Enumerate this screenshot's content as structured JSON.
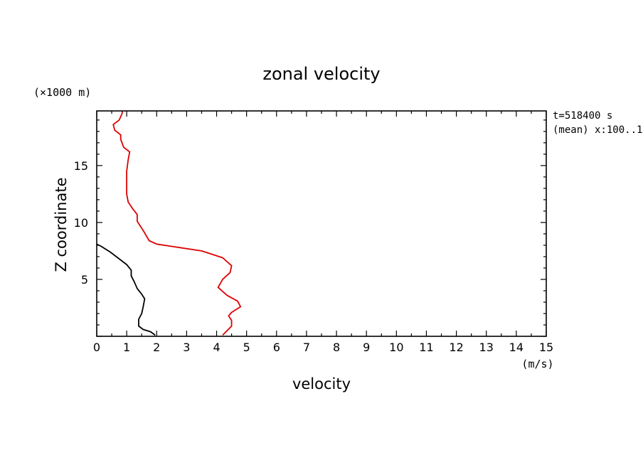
{
  "chart_data": {
    "type": "line",
    "title": "zonal velocity",
    "xlabel": "velocity",
    "xunit": "(m/s)",
    "ylabel": "Z coordinate",
    "yunit": "(×1000 m)",
    "annotations": [
      "t=518400 s",
      "(mean) x:100..1"
    ],
    "xlim": [
      0,
      15
    ],
    "ylim": [
      0,
      19.8
    ],
    "xticks": [
      "0",
      "1",
      "2",
      "3",
      "4",
      "5",
      "6",
      "7",
      "8",
      "9",
      "10",
      "11",
      "12",
      "13",
      "14",
      "15"
    ],
    "yticks": [
      "5",
      "10",
      "15"
    ],
    "series": [
      {
        "color": "#dd0000",
        "points": [
          [
            4.2,
            0.1
          ],
          [
            4.35,
            0.5
          ],
          [
            4.5,
            0.9
          ],
          [
            4.5,
            1.4
          ],
          [
            4.4,
            1.8
          ],
          [
            4.5,
            2.1
          ],
          [
            4.8,
            2.6
          ],
          [
            4.7,
            3.1
          ],
          [
            4.35,
            3.6
          ],
          [
            4.05,
            4.3
          ],
          [
            4.2,
            5.0
          ],
          [
            4.45,
            5.6
          ],
          [
            4.5,
            6.2
          ],
          [
            4.2,
            6.9
          ],
          [
            3.5,
            7.5
          ],
          [
            2.5,
            7.9
          ],
          [
            2.0,
            8.1
          ],
          [
            1.75,
            8.4
          ],
          [
            1.55,
            9.3
          ],
          [
            1.35,
            10.1
          ],
          [
            1.35,
            10.7
          ],
          [
            1.2,
            11.2
          ],
          [
            1.05,
            11.8
          ],
          [
            1.0,
            12.5
          ],
          [
            1.0,
            13.5
          ],
          [
            1.0,
            14.5
          ],
          [
            1.05,
            15.5
          ],
          [
            1.1,
            16.2
          ],
          [
            0.9,
            16.6
          ],
          [
            0.8,
            17.3
          ],
          [
            0.8,
            17.7
          ],
          [
            0.6,
            18.1
          ],
          [
            0.55,
            18.6
          ],
          [
            0.75,
            19.0
          ],
          [
            0.85,
            19.6
          ],
          [
            0.85,
            19.8
          ]
        ]
      },
      {
        "color": "#000000",
        "points": [
          [
            1.95,
            0.1
          ],
          [
            1.8,
            0.4
          ],
          [
            1.55,
            0.6
          ],
          [
            1.4,
            0.9
          ],
          [
            1.4,
            1.5
          ],
          [
            1.5,
            2.0
          ],
          [
            1.55,
            2.6
          ],
          [
            1.6,
            3.3
          ],
          [
            1.5,
            3.7
          ],
          [
            1.35,
            4.2
          ],
          [
            1.25,
            4.8
          ],
          [
            1.15,
            5.3
          ],
          [
            1.15,
            5.8
          ],
          [
            1.0,
            6.3
          ],
          [
            0.7,
            6.9
          ],
          [
            0.45,
            7.4
          ],
          [
            0.15,
            7.9
          ],
          [
            0.0,
            8.1
          ]
        ]
      }
    ]
  }
}
